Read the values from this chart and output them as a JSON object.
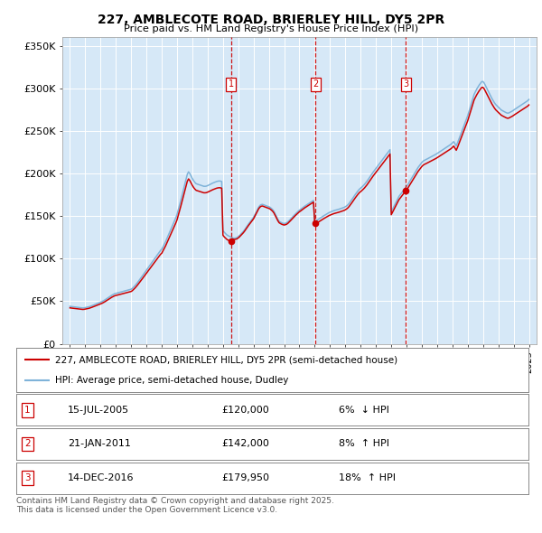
{
  "title": "227, AMBLECOTE ROAD, BRIERLEY HILL, DY5 2PR",
  "subtitle": "Price paid vs. HM Land Registry's House Price Index (HPI)",
  "ylabel_ticks": [
    "£0",
    "£50K",
    "£100K",
    "£150K",
    "£200K",
    "£250K",
    "£300K",
    "£350K"
  ],
  "ytick_vals": [
    0,
    50000,
    100000,
    150000,
    200000,
    250000,
    300000,
    350000
  ],
  "ylim": [
    0,
    360000
  ],
  "xlim_start": 1994.5,
  "xlim_end": 2025.5,
  "background_color": "#d6e8f7",
  "red_line_color": "#cc0000",
  "blue_line_color": "#7fb3d9",
  "vline_color": "#cc0000",
  "sale_events": [
    {
      "x": 2005.54,
      "label": "1",
      "price": 120000,
      "date": "15-JUL-2005",
      "pct": "6%",
      "dir": "↓"
    },
    {
      "x": 2011.05,
      "label": "2",
      "price": 142000,
      "date": "21-JAN-2011",
      "pct": "8%",
      "dir": "↑"
    },
    {
      "x": 2016.96,
      "label": "3",
      "price": 179950,
      "date": "14-DEC-2016",
      "pct": "18%",
      "dir": "↑"
    }
  ],
  "legend_red": "227, AMBLECOTE ROAD, BRIERLEY HILL, DY5 2PR (semi-detached house)",
  "legend_blue": "HPI: Average price, semi-detached house, Dudley",
  "footnote": "Contains HM Land Registry data © Crown copyright and database right 2025.\nThis data is licensed under the Open Government Licence v3.0.",
  "hpi_years": [
    1995,
    1995.083,
    1995.167,
    1995.25,
    1995.333,
    1995.417,
    1995.5,
    1995.583,
    1995.667,
    1995.75,
    1995.833,
    1995.917,
    1996,
    1996.083,
    1996.167,
    1996.25,
    1996.333,
    1996.417,
    1996.5,
    1996.583,
    1996.667,
    1996.75,
    1996.833,
    1996.917,
    1997,
    1997.083,
    1997.167,
    1997.25,
    1997.333,
    1997.417,
    1997.5,
    1997.583,
    1997.667,
    1997.75,
    1997.833,
    1997.917,
    1998,
    1998.083,
    1998.167,
    1998.25,
    1998.333,
    1998.417,
    1998.5,
    1998.583,
    1998.667,
    1998.75,
    1998.833,
    1998.917,
    1999,
    1999.083,
    1999.167,
    1999.25,
    1999.333,
    1999.417,
    1999.5,
    1999.583,
    1999.667,
    1999.75,
    1999.833,
    1999.917,
    2000,
    2000.083,
    2000.167,
    2000.25,
    2000.333,
    2000.417,
    2000.5,
    2000.583,
    2000.667,
    2000.75,
    2000.833,
    2000.917,
    2001,
    2001.083,
    2001.167,
    2001.25,
    2001.333,
    2001.417,
    2001.5,
    2001.583,
    2001.667,
    2001.75,
    2001.833,
    2001.917,
    2002,
    2002.083,
    2002.167,
    2002.25,
    2002.333,
    2002.417,
    2002.5,
    2002.583,
    2002.667,
    2002.75,
    2002.833,
    2002.917,
    2003,
    2003.083,
    2003.167,
    2003.25,
    2003.333,
    2003.417,
    2003.5,
    2003.583,
    2003.667,
    2003.75,
    2003.833,
    2003.917,
    2004,
    2004.083,
    2004.167,
    2004.25,
    2004.333,
    2004.417,
    2004.5,
    2004.583,
    2004.667,
    2004.75,
    2004.833,
    2004.917,
    2005,
    2005.083,
    2005.167,
    2005.25,
    2005.333,
    2005.417,
    2005.5,
    2005.583,
    2005.667,
    2005.75,
    2005.833,
    2005.917,
    2006,
    2006.083,
    2006.167,
    2006.25,
    2006.333,
    2006.417,
    2006.5,
    2006.583,
    2006.667,
    2006.75,
    2006.833,
    2006.917,
    2007,
    2007.083,
    2007.167,
    2007.25,
    2007.333,
    2007.417,
    2007.5,
    2007.583,
    2007.667,
    2007.75,
    2007.833,
    2007.917,
    2008,
    2008.083,
    2008.167,
    2008.25,
    2008.333,
    2008.417,
    2008.5,
    2008.583,
    2008.667,
    2008.75,
    2008.833,
    2008.917,
    2009,
    2009.083,
    2009.167,
    2009.25,
    2009.333,
    2009.417,
    2009.5,
    2009.583,
    2009.667,
    2009.75,
    2009.833,
    2009.917,
    2010,
    2010.083,
    2010.167,
    2010.25,
    2010.333,
    2010.417,
    2010.5,
    2010.583,
    2010.667,
    2010.75,
    2010.833,
    2010.917,
    2011,
    2011.083,
    2011.167,
    2011.25,
    2011.333,
    2011.417,
    2011.5,
    2011.583,
    2011.667,
    2011.75,
    2011.833,
    2011.917,
    2012,
    2012.083,
    2012.167,
    2012.25,
    2012.333,
    2012.417,
    2012.5,
    2012.583,
    2012.667,
    2012.75,
    2012.833,
    2012.917,
    2013,
    2013.083,
    2013.167,
    2013.25,
    2013.333,
    2013.417,
    2013.5,
    2013.583,
    2013.667,
    2013.75,
    2013.833,
    2013.917,
    2014,
    2014.083,
    2014.167,
    2014.25,
    2014.333,
    2014.417,
    2014.5,
    2014.583,
    2014.667,
    2014.75,
    2014.833,
    2014.917,
    2015,
    2015.083,
    2015.167,
    2015.25,
    2015.333,
    2015.417,
    2015.5,
    2015.583,
    2015.667,
    2015.75,
    2015.833,
    2015.917,
    2016,
    2016.083,
    2016.167,
    2016.25,
    2016.333,
    2016.417,
    2016.5,
    2016.583,
    2016.667,
    2016.75,
    2016.833,
    2016.917,
    2017,
    2017.083,
    2017.167,
    2017.25,
    2017.333,
    2017.417,
    2017.5,
    2017.583,
    2017.667,
    2017.75,
    2017.833,
    2017.917,
    2018,
    2018.083,
    2018.167,
    2018.25,
    2018.333,
    2018.417,
    2018.5,
    2018.583,
    2018.667,
    2018.75,
    2018.833,
    2018.917,
    2019,
    2019.083,
    2019.167,
    2019.25,
    2019.333,
    2019.417,
    2019.5,
    2019.583,
    2019.667,
    2019.75,
    2019.833,
    2019.917,
    2020,
    2020.083,
    2020.167,
    2020.25,
    2020.333,
    2020.417,
    2020.5,
    2020.583,
    2020.667,
    2020.75,
    2020.833,
    2020.917,
    2021,
    2021.083,
    2021.167,
    2021.25,
    2021.333,
    2021.417,
    2021.5,
    2021.583,
    2021.667,
    2021.75,
    2021.833,
    2021.917,
    2022,
    2022.083,
    2022.167,
    2022.25,
    2022.333,
    2022.417,
    2022.5,
    2022.583,
    2022.667,
    2022.75,
    2022.833,
    2022.917,
    2023,
    2023.083,
    2023.167,
    2023.25,
    2023.333,
    2023.417,
    2023.5,
    2023.583,
    2023.667,
    2023.75,
    2023.833,
    2023.917,
    2024,
    2024.083,
    2024.167,
    2024.25,
    2024.333,
    2024.417,
    2024.5,
    2024.583,
    2024.667,
    2024.75,
    2024.833,
    2024.917,
    2025
  ],
  "hpi_vals": [
    44000,
    43800,
    43600,
    43400,
    43200,
    43000,
    42800,
    42600,
    42400,
    42200,
    42100,
    42200,
    42500,
    42800,
    43100,
    43500,
    44000,
    44600,
    45200,
    45800,
    46400,
    47000,
    47600,
    48200,
    48800,
    49500,
    50300,
    51200,
    52200,
    53200,
    54200,
    55200,
    56200,
    57200,
    58000,
    58800,
    59200,
    59600,
    60000,
    60400,
    60800,
    61200,
    61600,
    62000,
    62400,
    62800,
    63200,
    63600,
    64100,
    65200,
    66700,
    68300,
    70100,
    72000,
    74000,
    76000,
    78100,
    80200,
    82300,
    84400,
    86500,
    88600,
    90700,
    92800,
    94900,
    97000,
    99100,
    101200,
    103300,
    105400,
    107500,
    109600,
    111000,
    114000,
    117000,
    120000,
    123500,
    127000,
    130500,
    134000,
    137500,
    141000,
    144500,
    148000,
    152000,
    157500,
    163000,
    169000,
    175000,
    181000,
    187000,
    193000,
    199000,
    202000,
    200000,
    197000,
    194000,
    191500,
    189500,
    188000,
    187500,
    187000,
    186500,
    186000,
    185500,
    185000,
    185000,
    185200,
    185800,
    186500,
    187300,
    188200,
    188800,
    189400,
    190000,
    190600,
    191000,
    191200,
    191100,
    190600,
    133000,
    131000,
    129500,
    128000,
    127000,
    126200,
    125500,
    124800,
    124200,
    124000,
    124300,
    124800,
    125800,
    127200,
    128800,
    130400,
    132000,
    134000,
    136200,
    138400,
    140600,
    142600,
    144600,
    146600,
    148600,
    151500,
    154500,
    157500,
    160500,
    162500,
    163500,
    163800,
    163200,
    162600,
    162000,
    161500,
    161000,
    160200,
    159000,
    157500,
    155500,
    152500,
    149500,
    146500,
    144000,
    143000,
    142200,
    141600,
    141200,
    141600,
    142200,
    143300,
    144800,
    146400,
    148000,
    149600,
    151200,
    152800,
    154200,
    155600,
    157000,
    158000,
    159200,
    160400,
    161500,
    162500,
    163600,
    164600,
    165600,
    166600,
    167500,
    168400,
    143000,
    144200,
    145400,
    146400,
    147400,
    148400,
    149400,
    150300,
    151200,
    152100,
    153000,
    153900,
    154600,
    155200,
    155800,
    156400,
    156800,
    157200,
    157600,
    158100,
    158600,
    159100,
    159600,
    160200,
    161000,
    162000,
    163300,
    165000,
    167000,
    169200,
    171400,
    173600,
    175800,
    177800,
    179800,
    181600,
    182800,
    184200,
    185600,
    187200,
    189000,
    191000,
    193200,
    195400,
    197600,
    199800,
    202000,
    204000,
    206000,
    208000,
    210000,
    212000,
    214000,
    216000,
    218000,
    220000,
    222000,
    224000,
    226000,
    228000,
    155000,
    158000,
    161000,
    164000,
    167000,
    170000,
    173000,
    175000,
    177000,
    179000,
    181000,
    183000,
    185000,
    187000,
    189500,
    192000,
    194500,
    197000,
    199500,
    202000,
    204500,
    207000,
    209000,
    211000,
    213000,
    214500,
    215500,
    216200,
    217000,
    217800,
    218600,
    219400,
    220200,
    221000,
    221800,
    222600,
    223500,
    224500,
    225500,
    226500,
    227500,
    228500,
    229500,
    230500,
    231500,
    232500,
    233500,
    234500,
    236000,
    237500,
    235000,
    232500,
    236000,
    240000,
    244000,
    248000,
    252000,
    256000,
    260000,
    264000,
    268000,
    273000,
    278000,
    283000,
    288000,
    293000,
    296000,
    299000,
    301500,
    304000,
    306000,
    308000,
    308000,
    306000,
    303000,
    300000,
    297000,
    294000,
    291000,
    288000,
    285500,
    283000,
    281000,
    279500,
    278000,
    276500,
    275000,
    274000,
    273200,
    272400,
    271600,
    271000,
    271000,
    271800,
    272600,
    273400,
    274500,
    275500,
    276500,
    277500,
    278500,
    279500,
    280500,
    281500,
    282500,
    283500,
    284500,
    285500,
    287000
  ]
}
